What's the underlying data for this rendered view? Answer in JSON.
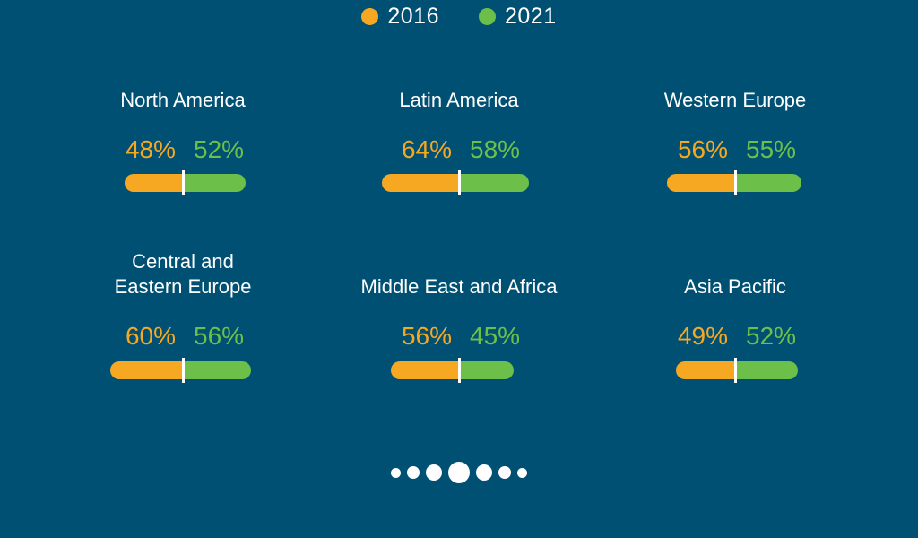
{
  "colors": {
    "background": "#005073",
    "series_2016": "#F7A823",
    "series_2021": "#6CC04A"
  },
  "legend": [
    {
      "label": "2016",
      "color": "#F7A823"
    },
    {
      "label": "2021",
      "color": "#6CC04A"
    }
  ],
  "chart_data": {
    "type": "bar",
    "categories": [
      "North America",
      "Latin America",
      "Western Europe",
      "Central and\nEastern Europe",
      "Middle East and Africa",
      "Asia Pacific"
    ],
    "series": [
      {
        "name": "2016",
        "values": [
          48,
          64,
          56,
          60,
          56,
          49
        ],
        "labels": [
          "48%",
          "64%",
          "56%",
          "60%",
          "56%",
          "49%"
        ]
      },
      {
        "name": "2021",
        "values": [
          52,
          58,
          55,
          56,
          45,
          52
        ],
        "labels": [
          "52%",
          "58%",
          "55%",
          "56%",
          "45%",
          "52%"
        ]
      }
    ],
    "unit": "%",
    "legend_position": "top-center"
  },
  "pagination": {
    "count": 7,
    "active_index": 3
  }
}
